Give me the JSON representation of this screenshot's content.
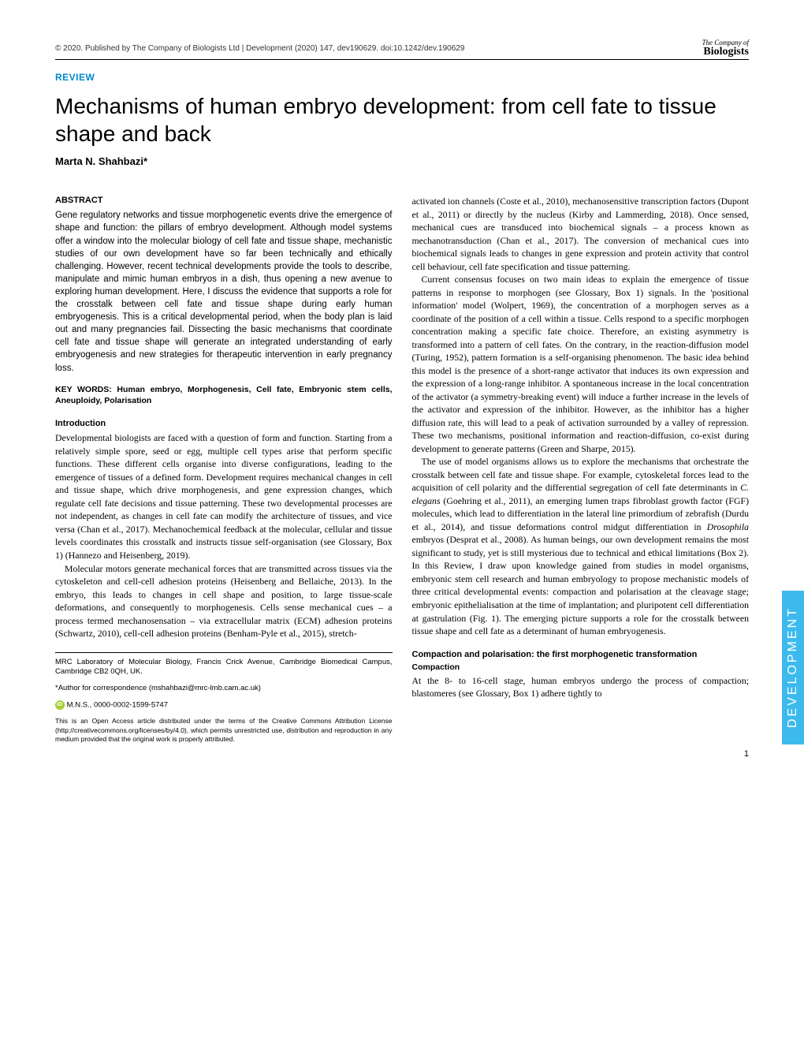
{
  "header": {
    "copyright": "© 2020. Published by The Company of Biologists Ltd | Development (2020) 147, dev190629. doi:10.1242/dev.190629",
    "logo_top": "The Company of",
    "logo_bottom": "Biologists"
  },
  "review_label": "REVIEW",
  "title": "Mechanisms of human embryo development: from cell fate to tissue shape and back",
  "author": "Marta N. Shahbazi*",
  "abstract_heading": "ABSTRACT",
  "abstract_text": "Gene regulatory networks and tissue morphogenetic events drive the emergence of shape and function: the pillars of embryo development. Although model systems offer a window into the molecular biology of cell fate and tissue shape, mechanistic studies of our own development have so far been technically and ethically challenging. However, recent technical developments provide the tools to describe, manipulate and mimic human embryos in a dish, thus opening a new avenue to exploring human development. Here, I discuss the evidence that supports a role for the crosstalk between cell fate and tissue shape during early human embryogenesis. This is a critical developmental period, when the body plan is laid out and many pregnancies fail. Dissecting the basic mechanisms that coordinate cell fate and tissue shape will generate an integrated understanding of early embryogenesis and new strategies for therapeutic intervention in early pregnancy loss.",
  "keywords": "KEY WORDS: Human embryo, Morphogenesis, Cell fate, Embryonic stem cells, Aneuploidy, Polarisation",
  "intro_heading": "Introduction",
  "intro_p1": "Developmental biologists are faced with a question of form and function. Starting from a relatively simple spore, seed or egg, multiple cell types arise that perform specific functions. These different cells organise into diverse configurations, leading to the emergence of tissues of a defined form. Development requires mechanical changes in cell and tissue shape, which drive morphogenesis, and gene expression changes, which regulate cell fate decisions and tissue patterning. These two developmental processes are not independent, as changes in cell fate can modify the architecture of tissues, and vice versa (Chan et al., 2017). Mechanochemical feedback at the molecular, cellular and tissue levels coordinates this crosstalk and instructs tissue self-organisation (see Glossary, Box 1) (Hannezo and Heisenberg, 2019).",
  "intro_p2": "Molecular motors generate mechanical forces that are transmitted across tissues via the cytoskeleton and cell-cell adhesion proteins (Heisenberg and Bellaiche, 2013). In the embryo, this leads to changes in cell shape and position, to large tissue-scale deformations, and consequently to morphogenesis. Cells sense mechanical cues – a process termed mechanosensation – via extracellular matrix (ECM) adhesion proteins (Schwartz, 2010), cell-cell adhesion proteins (Benham-Pyle et al., 2015), stretch-",
  "affiliation": "MRC Laboratory of Molecular Biology, Francis Crick Avenue, Cambridge Biomedical Campus, Cambridge CB2 0QH, UK.",
  "correspondence": "*Author for correspondence (mshahbazi@mrc-lmb.cam.ac.uk)",
  "orcid_text": "M.N.S., 0000-0002-1599-5747",
  "license": "This is an Open Access article distributed under the terms of the Creative Commons Attribution License (http://creativecommons.org/licenses/by/4.0), which permits unrestricted use, distribution and reproduction in any medium provided that the original work is properly attributed.",
  "col2_p1": "activated ion channels (Coste et al., 2010), mechanosensitive transcription factors (Dupont et al., 2011) or directly by the nucleus (Kirby and Lammerding, 2018). Once sensed, mechanical cues are transduced into biochemical signals – a process known as mechanotransduction (Chan et al., 2017). The conversion of mechanical cues into biochemical signals leads to changes in gene expression and protein activity that control cell behaviour, cell fate specification and tissue patterning.",
  "col2_p2": "Current consensus focuses on two main ideas to explain the emergence of tissue patterns in response to morphogen (see Glossary, Box 1) signals. In the 'positional information' model (Wolpert, 1969), the concentration of a morphogen serves as a coordinate of the position of a cell within a tissue. Cells respond to a specific morphogen concentration making a specific fate choice. Therefore, an existing asymmetry is transformed into a pattern of cell fates. On the contrary, in the reaction-diffusion model (Turing, 1952), pattern formation is a self-organising phenomenon. The basic idea behind this model is the presence of a short-range activator that induces its own expression and the expression of a long-range inhibitor. A spontaneous increase in the local concentration of the activator (a symmetry-breaking event) will induce a further increase in the levels of the activator and expression of the inhibitor. However, as the inhibitor has a higher diffusion rate, this will lead to a peak of activation surrounded by a valley of repression. These two mechanisms, positional information and reaction-diffusion, co-exist during development to generate patterns (Green and Sharpe, 2015).",
  "col2_p3a": "The use of model organisms allows us to explore the mechanisms that orchestrate the crosstalk between cell fate and tissue shape. For example, cytoskeletal forces lead to the acquisition of cell polarity and the differential segregation of cell fate determinants in ",
  "col2_p3_species": "C. elegans",
  "col2_p3b": " (Goehring et al., 2011), an emerging lumen traps fibroblast growth factor (FGF) molecules, which lead to differentiation in the lateral line primordium of zebrafish (Durdu et al., 2014), and tissue deformations control midgut differentiation in ",
  "col2_p3_species2": "Drosophila",
  "col2_p3c": " embryos (Desprat et al., 2008). As human beings, our own development remains the most significant to study, yet is still mysterious due to technical and ethical limitations (Box 2). In this Review, I draw upon knowledge gained from studies in model organisms, embryonic stem cell research and human embryology to propose mechanistic models of three critical developmental events: compaction and polarisation at the cleavage stage; embryonic epithelialisation at the time of implantation; and pluripotent cell differentiation at gastrulation (Fig. 1). The emerging picture supports a role for the crosstalk between tissue shape and cell fate as a determinant of human embryogenesis.",
  "section2_heading": "Compaction and polarisation: the first morphogenetic transformation",
  "subheading": "Compaction",
  "section2_p1": "At the 8- to 16-cell stage, human embryos undergo the process of compaction; blastomeres (see Glossary, Box 1) adhere tightly to",
  "side_tab": "DEVELOPMENT",
  "page_number": "1"
}
